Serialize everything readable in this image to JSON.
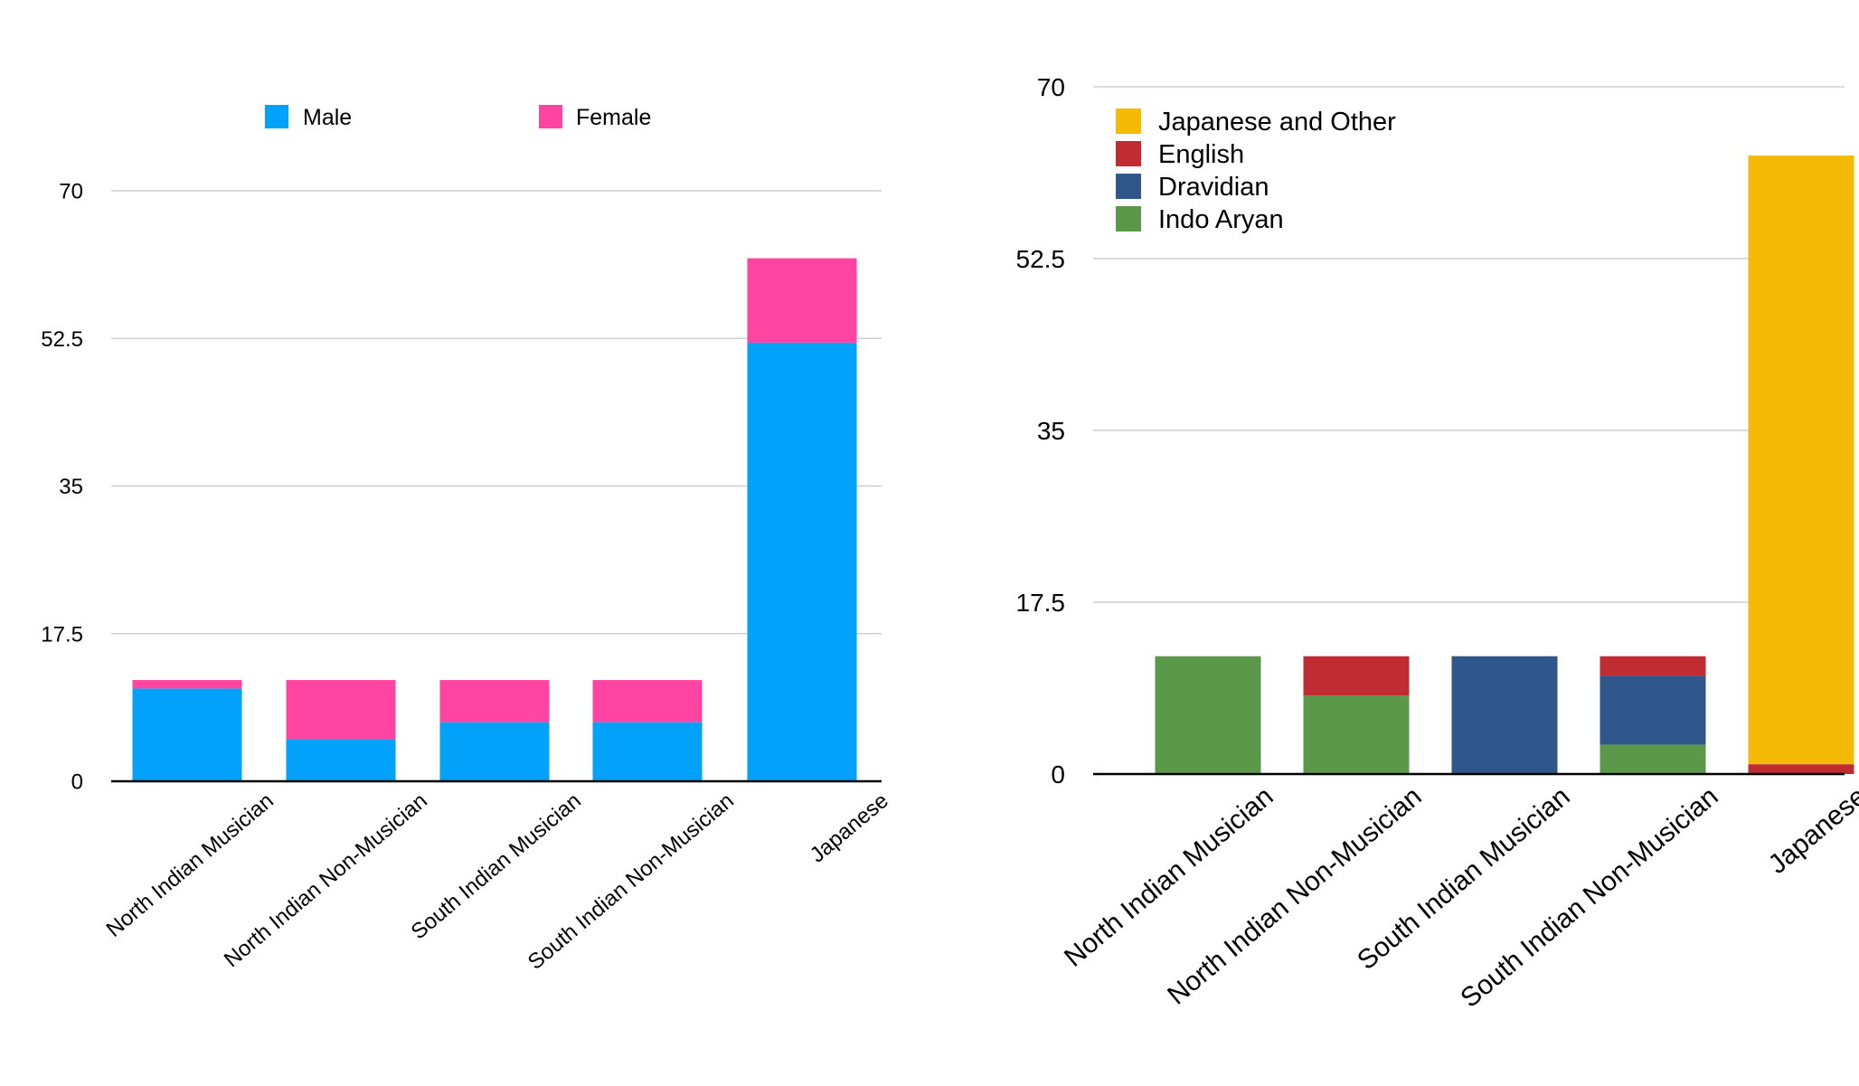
{
  "chart_data": [
    {
      "type": "bar",
      "stacked": true,
      "title": "",
      "xlabel": "",
      "ylabel": "",
      "ylim": [
        0,
        70
      ],
      "yticks": [
        "0",
        "17.5",
        "35",
        "52.5",
        "70"
      ],
      "grid": true,
      "legend_position": "top",
      "categories": [
        "North Indian Musician",
        "North Indian Non-Musician",
        "South Indian Musician",
        "South Indian Non-Musician",
        "Japanese"
      ],
      "series": [
        {
          "name": "Male",
          "color": "#03A2FA",
          "values": [
            11,
            5,
            7,
            7,
            52
          ]
        },
        {
          "name": "Female",
          "color": "#FF44A1",
          "values": [
            1,
            7,
            5,
            5,
            10
          ]
        }
      ]
    },
    {
      "type": "bar",
      "stacked": true,
      "title": "",
      "xlabel": "",
      "ylabel": "",
      "ylim": [
        0,
        70
      ],
      "yticks": [
        "0",
        "17.5",
        "35",
        "52.5",
        "70"
      ],
      "grid": true,
      "legend_position": "top-left",
      "categories": [
        "North Indian Musician",
        "North Indian Non-Musician",
        "South Indian Musician",
        "South Indian Non-Musician",
        "Japanese"
      ],
      "series": [
        {
          "name": "Indo Aryan",
          "color": "#5B984A",
          "values": [
            12,
            8,
            0,
            3,
            0
          ]
        },
        {
          "name": "Dravidian",
          "color": "#2F578B",
          "values": [
            0,
            0,
            12,
            7,
            0
          ]
        },
        {
          "name": "English",
          "color": "#C12C33",
          "values": [
            0,
            4,
            0,
            2,
            1
          ]
        },
        {
          "name": "Japanese and Other",
          "color": "#F5BA05",
          "values": [
            0,
            0,
            0,
            0,
            62
          ]
        }
      ],
      "legend_order": [
        "Japanese and Other",
        "English",
        "Dravidian",
        "Indo Aryan"
      ]
    }
  ]
}
